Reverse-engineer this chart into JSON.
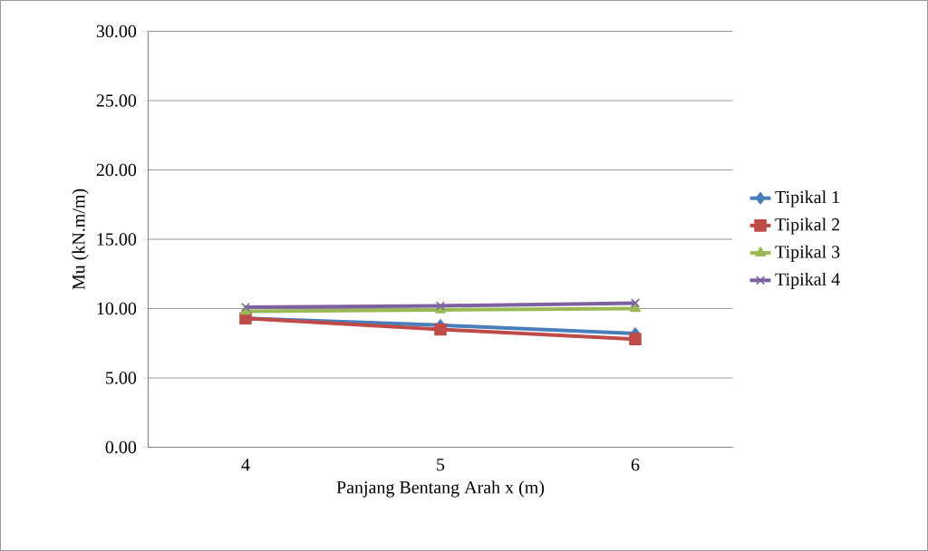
{
  "chart_data": {
    "type": "line",
    "xlabel": "Panjang Bentang Arah x (m)",
    "ylabel": "Mu (kN.m/m)",
    "categories": [
      "4",
      "5",
      "6"
    ],
    "series": [
      {
        "name": "Tipikal 1",
        "color": "#4a7ebb",
        "marker": "diamond",
        "values": [
          9.3,
          8.8,
          8.2
        ]
      },
      {
        "name": "Tipikal 2",
        "color": "#be4b48",
        "marker": "square",
        "values": [
          9.3,
          8.5,
          7.8
        ]
      },
      {
        "name": "Tipikal 3",
        "color": "#98b954",
        "marker": "triangle",
        "values": [
          9.8,
          9.9,
          10.0
        ]
      },
      {
        "name": "Tipikal 4",
        "color": "#7d60a0",
        "marker": "cross",
        "values": [
          10.1,
          10.2,
          10.4
        ]
      }
    ],
    "ylim": [
      0,
      30
    ],
    "yticks": [
      {
        "value": 0,
        "label": "0.00"
      },
      {
        "value": 5,
        "label": "5.00"
      },
      {
        "value": 10,
        "label": "10.00"
      },
      {
        "value": 15,
        "label": "15.00"
      },
      {
        "value": 20,
        "label": "20.00"
      },
      {
        "value": 25,
        "label": "25.00"
      },
      {
        "value": 30,
        "label": "30.00"
      }
    ],
    "grid": "y",
    "legend": "right",
    "line_style": "solid"
  }
}
